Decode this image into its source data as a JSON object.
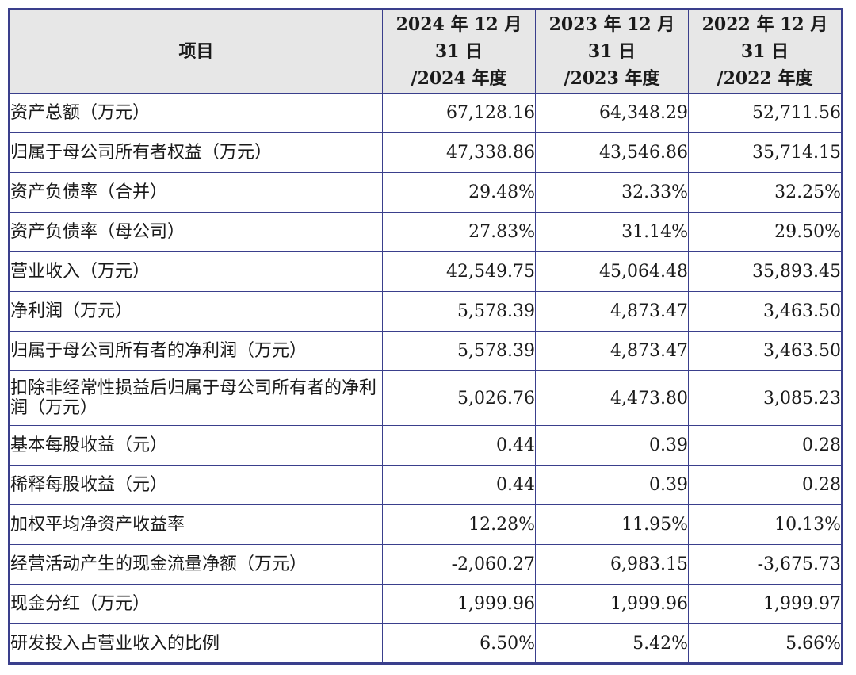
{
  "table": {
    "header": {
      "item": "项目",
      "years": [
        {
          "line1": "2024 年 12 月",
          "line2": "31 日",
          "line3": "/2024 年度"
        },
        {
          "line1": "2023 年 12 月",
          "line2": "31 日",
          "line3": "/2023 年度"
        },
        {
          "line1": "2022 年 12 月",
          "line2": "31 日",
          "line3": "/2022 年度"
        }
      ]
    },
    "rows": [
      {
        "label": "资产总额（万元）",
        "v2024": "67,128.16",
        "v2023": "64,348.29",
        "v2022": "52,711.56"
      },
      {
        "label": "归属于母公司所有者权益（万元）",
        "v2024": "47,338.86",
        "v2023": "43,546.86",
        "v2022": "35,714.15"
      },
      {
        "label": "资产负债率（合并）",
        "v2024": "29.48%",
        "v2023": "32.33%",
        "v2022": "32.25%"
      },
      {
        "label": "资产负债率（母公司）",
        "v2024": "27.83%",
        "v2023": "31.14%",
        "v2022": "29.50%"
      },
      {
        "label": "营业收入（万元）",
        "v2024": "42,549.75",
        "v2023": "45,064.48",
        "v2022": "35,893.45"
      },
      {
        "label": "净利润（万元）",
        "v2024": "5,578.39",
        "v2023": "4,873.47",
        "v2022": "3,463.50"
      },
      {
        "label": "归属于母公司所有者的净利润（万元）",
        "v2024": "5,578.39",
        "v2023": "4,873.47",
        "v2022": "3,463.50"
      },
      {
        "label": "扣除非经常性损益后归属于母公司所有者的净利润（万元）",
        "v2024": "5,026.76",
        "v2023": "4,473.80",
        "v2022": "3,085.23"
      },
      {
        "label": "基本每股收益（元）",
        "v2024": "0.44",
        "v2023": "0.39",
        "v2022": "0.28"
      },
      {
        "label": "稀释每股收益（元）",
        "v2024": "0.44",
        "v2023": "0.39",
        "v2022": "0.28"
      },
      {
        "label": "加权平均净资产收益率",
        "v2024": "12.28%",
        "v2023": "11.95%",
        "v2022": "10.13%"
      },
      {
        "label": "经营活动产生的现金流量净额（万元）",
        "v2024": "-2,060.27",
        "v2023": "6,983.15",
        "v2022": "-3,675.73"
      },
      {
        "label": "现金分红（万元）",
        "v2024": "1,999.96",
        "v2023": "1,999.96",
        "v2022": "1,999.97"
      },
      {
        "label": "研发投入占营业收入的比例",
        "v2024": "6.50%",
        "v2023": "5.42%",
        "v2022": "5.66%"
      }
    ]
  }
}
